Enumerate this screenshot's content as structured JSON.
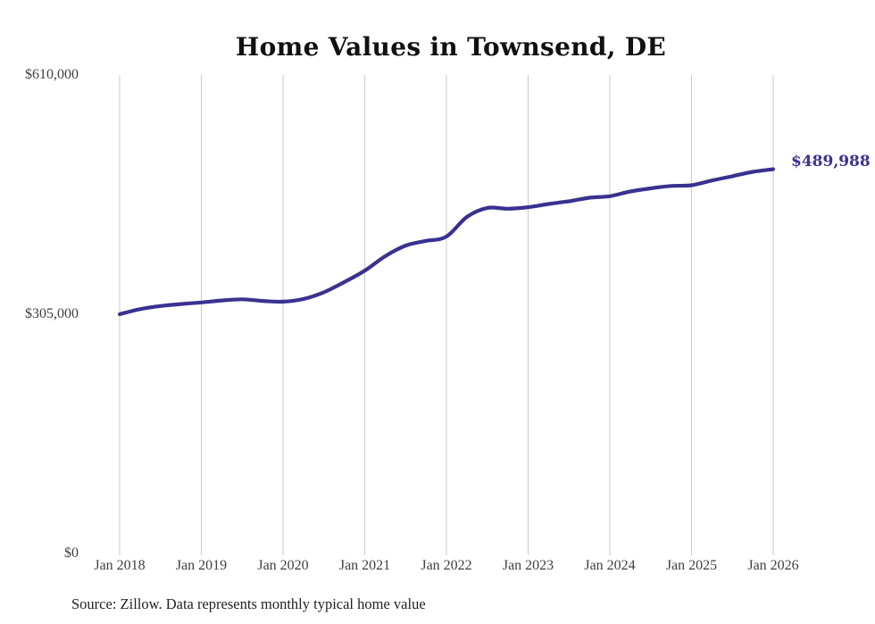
{
  "chart_data": {
    "type": "line",
    "title": "Home Values in Townsend, DE",
    "xlabel": "",
    "ylabel": "",
    "x_tick_labels": [
      "Jan 2018",
      "Jan 2019",
      "Jan 2020",
      "Jan 2021",
      "Jan 2022",
      "Jan 2023",
      "Jan 2024",
      "Jan 2025",
      "Jan 2026"
    ],
    "y_tick_labels": [
      "$610,000",
      "$305,000",
      "$0"
    ],
    "y_tick_values": [
      610000,
      305000,
      0
    ],
    "ylim": [
      0,
      610000
    ],
    "x_range_years": [
      2018,
      2026
    ],
    "grid": "vertical-only",
    "legend": "none",
    "end_label": "$489,988",
    "final_value": 489988,
    "series": [
      {
        "name": "typical-home-value",
        "x": [
          2018.0,
          2018.25,
          2018.5,
          2018.75,
          2019.0,
          2019.25,
          2019.5,
          2019.75,
          2020.0,
          2020.25,
          2020.5,
          2020.75,
          2021.0,
          2021.25,
          2021.5,
          2021.75,
          2022.0,
          2022.25,
          2022.5,
          2022.75,
          2023.0,
          2023.25,
          2023.5,
          2023.75,
          2024.0,
          2024.25,
          2024.5,
          2024.75,
          2025.0,
          2025.25,
          2025.5,
          2025.75,
          2026.0
        ],
        "values": [
          305000,
          311500,
          315500,
          318000,
          320000,
          322500,
          324000,
          322000,
          321000,
          324500,
          333000,
          346000,
          360500,
          379000,
          392500,
          398500,
          404000,
          429000,
          440500,
          439500,
          441500,
          445500,
          449000,
          453500,
          455500,
          461500,
          465500,
          468500,
          469500,
          475500,
          481000,
          486500,
          489988
        ]
      }
    ]
  },
  "colors": {
    "line": "#3a3190",
    "end_label": "#3a3190",
    "grid": "#cbcbcb",
    "axis_text": "#3f3f3f",
    "title_text": "#111111",
    "background": "#ffffff"
  },
  "source_note": "Source: Zillow. Data represents monthly typical home value"
}
